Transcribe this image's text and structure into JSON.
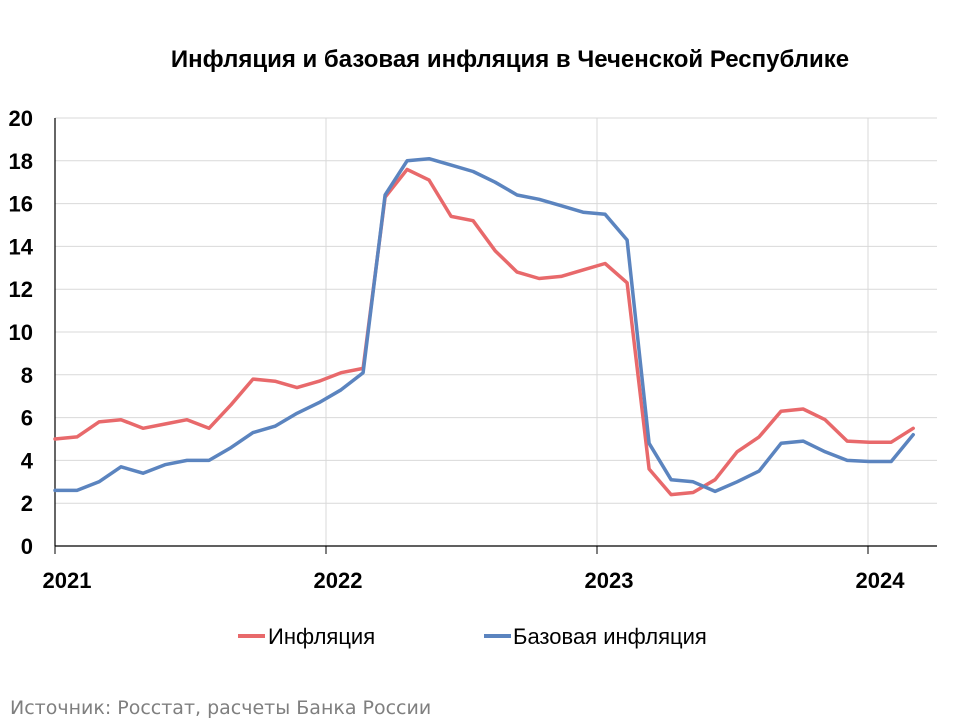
{
  "source": "Источник: Росстат, расчеты Банка России",
  "chart_data": {
    "type": "line",
    "title": "Инфляция и базовая инфляция в Чеченской Республике",
    "xlabel": "",
    "ylabel": "",
    "ylim": [
      0,
      20
    ],
    "yticks": [
      0,
      2,
      4,
      6,
      8,
      10,
      12,
      14,
      16,
      18,
      20
    ],
    "xticks": [
      {
        "x": 0,
        "label": "2021"
      },
      {
        "x": 12,
        "label": "2022"
      },
      {
        "x": 24,
        "label": "2023"
      },
      {
        "x": 36,
        "label": "2024"
      }
    ],
    "x_range": [
      0,
      38
    ],
    "grid": true,
    "legend_position": "bottom",
    "series": [
      {
        "name": "Инфляция",
        "color": "#e8696b",
        "values": [
          5.0,
          5.1,
          5.8,
          5.9,
          5.5,
          5.7,
          5.9,
          5.5,
          6.6,
          7.8,
          7.7,
          7.4,
          7.7,
          8.1,
          8.3,
          16.3,
          17.6,
          17.1,
          15.4,
          15.2,
          13.8,
          12.8,
          12.5,
          12.6,
          12.9,
          13.2,
          12.3,
          3.6,
          2.4,
          2.5,
          3.1,
          4.4,
          5.1,
          6.3,
          6.4,
          5.9,
          4.9,
          4.85,
          4.85,
          5.5
        ]
      },
      {
        "name": "Базовая инфляция",
        "color": "#5b84bf",
        "values": [
          2.6,
          2.6,
          3.0,
          3.7,
          3.4,
          3.8,
          4.0,
          4.0,
          4.6,
          5.3,
          5.6,
          6.2,
          6.7,
          7.3,
          8.1,
          16.4,
          18.0,
          18.1,
          17.8,
          17.5,
          17.0,
          16.4,
          16.2,
          15.9,
          15.6,
          15.5,
          14.3,
          4.8,
          3.1,
          3.0,
          2.55,
          3.0,
          3.5,
          4.8,
          4.9,
          4.4,
          4.0,
          3.95,
          3.95,
          5.2
        ]
      }
    ]
  }
}
